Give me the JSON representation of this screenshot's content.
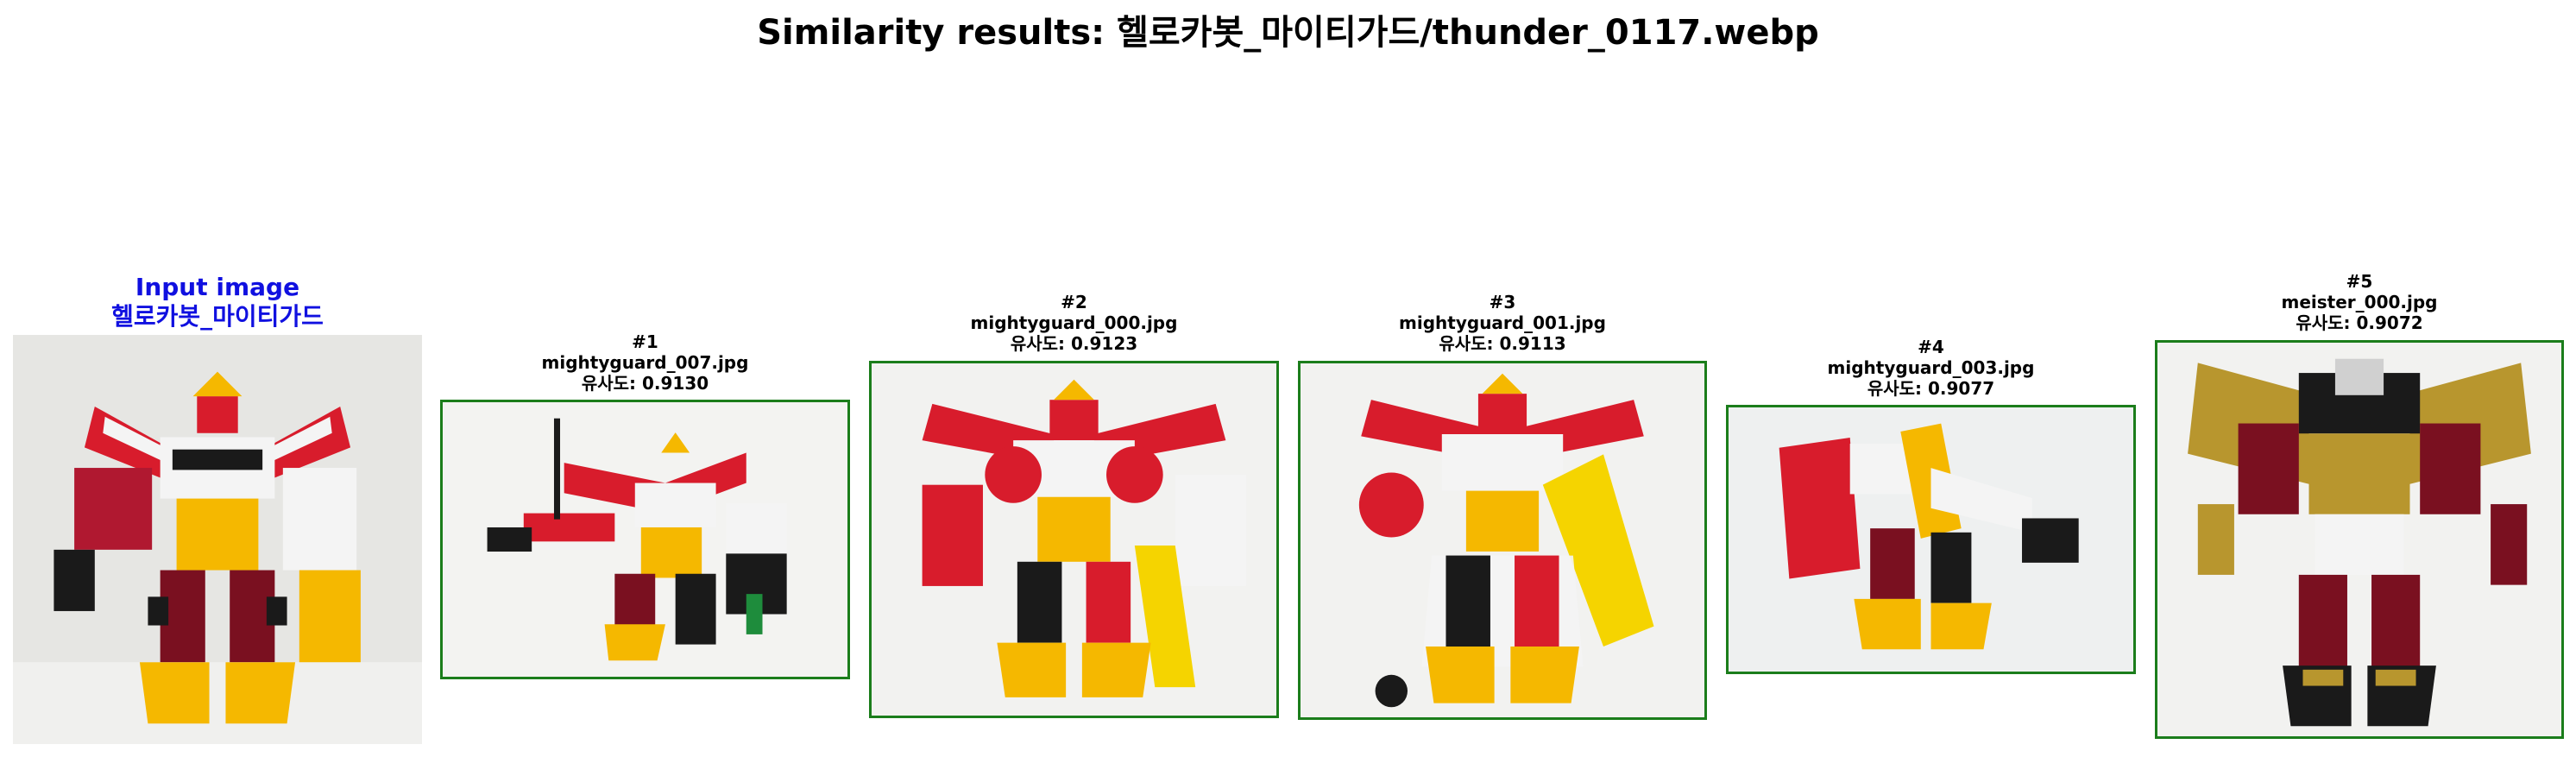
{
  "title": "Similarity results: 헬로카봇_마이티가드/thunder_0117.webp",
  "colors": {
    "input_caption": "#1010e0",
    "result_border": "#1b7d1b",
    "robot_red": "#d81c2c",
    "robot_yellow": "#f5b800",
    "robot_white": "#f4f4f4",
    "robot_black": "#1a1a1a",
    "robot_gold": "#b8962e",
    "robot_maroon": "#7a1020"
  },
  "input": {
    "label": "Input image",
    "name": "헬로카봇_마이티가드",
    "image": "robot-toy-photo"
  },
  "results": [
    {
      "rank": "#1",
      "file": "mightyguard_007.jpg",
      "score": "유사도: 0.9130",
      "image": "robot-toy-photo"
    },
    {
      "rank": "#2",
      "file": "mightyguard_000.jpg",
      "score": "유사도: 0.9123",
      "image": "robot-toy-photo"
    },
    {
      "rank": "#3",
      "file": "mightyguard_001.jpg",
      "score": "유사도: 0.9113",
      "image": "robot-toy-photo"
    },
    {
      "rank": "#4",
      "file": "mightyguard_003.jpg",
      "score": "유사도: 0.9077",
      "image": "robot-toy-photo"
    },
    {
      "rank": "#5",
      "file": "meister_000.jpg",
      "score": "유사도: 0.9072",
      "image": "robot-toy-photo"
    }
  ]
}
